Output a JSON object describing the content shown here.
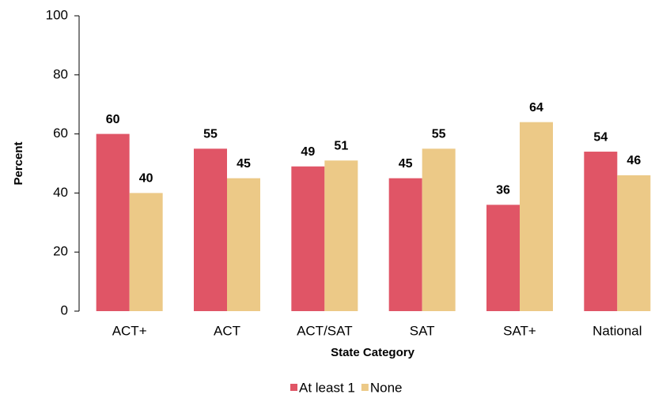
{
  "chart_data": {
    "type": "bar",
    "categories": [
      "ACT+",
      "ACT",
      "ACT/SAT",
      "SAT",
      "SAT+",
      "National"
    ],
    "series": [
      {
        "name": "At least 1",
        "color": "#e05566",
        "values": [
          60,
          55,
          49,
          45,
          36,
          54
        ]
      },
      {
        "name": "None",
        "color": "#ecc987",
        "values": [
          40,
          45,
          51,
          55,
          64,
          46
        ]
      }
    ],
    "x_label": "State Category",
    "y_label": "Percent",
    "ylim": [
      0,
      100
    ],
    "yticks": [
      0,
      20,
      40,
      60,
      80,
      100
    ],
    "grid": false,
    "legend": "bottom"
  }
}
